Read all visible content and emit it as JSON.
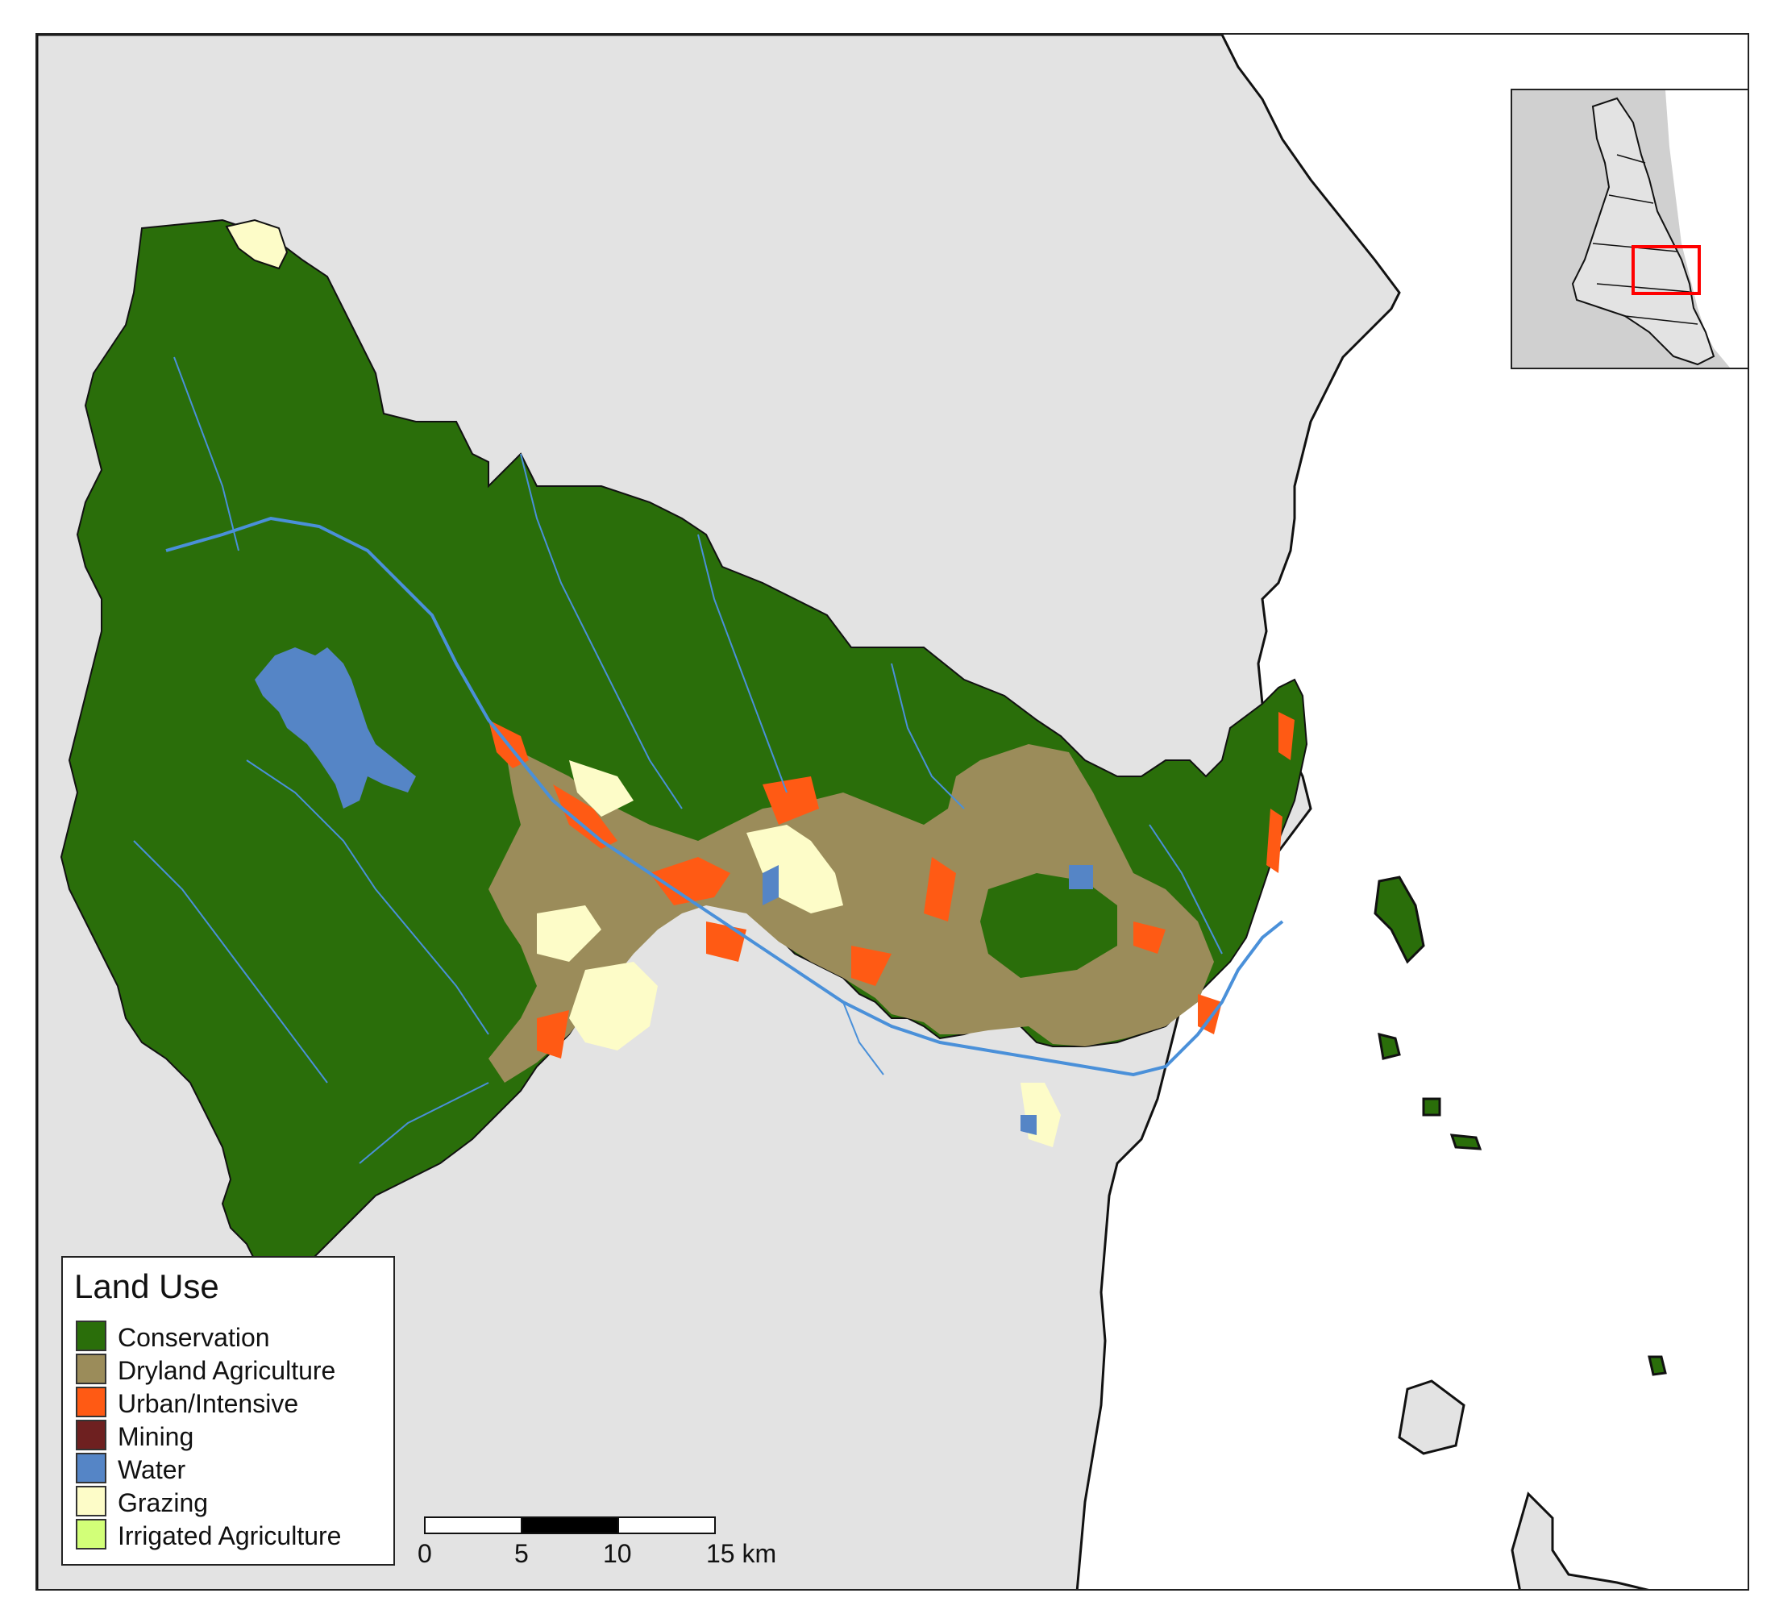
{
  "map": {
    "colors": {
      "background_land": "#e3e3e3",
      "sea": "#ffffff",
      "outline": "#111111",
      "rivers": "#4a90d9"
    },
    "icons": [
      "land-use-map",
      "locator-inset-map",
      "scale-bar"
    ]
  },
  "legend": {
    "title": "Land Use",
    "items": [
      {
        "label": "Conservation",
        "color": "#2a6e0a"
      },
      {
        "label": "Dryland Agriculture",
        "color": "#9b8c5a"
      },
      {
        "label": "Urban/Intensive",
        "color": "#ff5a14"
      },
      {
        "label": "Mining",
        "color": "#6e2020"
      },
      {
        "label": "Water",
        "color": "#5585c6"
      },
      {
        "label": "Grazing",
        "color": "#fdfcc8"
      },
      {
        "label": "Irrigated Agriculture",
        "color": "#d2ff78"
      }
    ]
  },
  "scalebar": {
    "ticks": [
      "0",
      "5",
      "10",
      "15 km"
    ]
  },
  "inset": {
    "box_color": "#ff0000",
    "fill": "#d0d0d0"
  }
}
